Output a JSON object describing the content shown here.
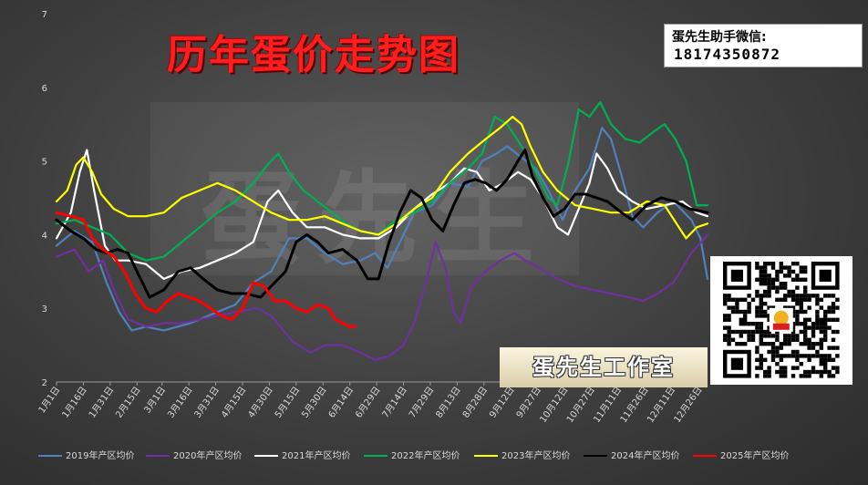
{
  "title": "历年蛋价走势图",
  "wechat_label": "蛋先生助手微信:",
  "wechat_number": "18174350872",
  "studio_label": "蛋先生工作室",
  "watermark": "蛋先生",
  "qr_icon": "qr-code-icon",
  "chart_data": {
    "type": "line",
    "ylim": [
      2,
      7
    ],
    "yticks": [
      2,
      3,
      4,
      5,
      6,
      7
    ],
    "xlim": [
      0,
      364
    ],
    "grid": false,
    "legend": "bottom",
    "x_tick_labels": [
      "1月1日",
      "1月16日",
      "1月31日",
      "2月15日",
      "3月1日",
      "3月16日",
      "3月31日",
      "4月15日",
      "4月30日",
      "5月15日",
      "5月30日",
      "6月14日",
      "6月29日",
      "7月14日",
      "7月29日",
      "8月13日",
      "8月28日",
      "9月12日",
      "9月27日",
      "10月12日",
      "10月27日",
      "11月11日",
      "11月26日",
      "12月11日",
      "12月26日"
    ],
    "x_tick_days": [
      0,
      15,
      30,
      45,
      59,
      74,
      89,
      104,
      119,
      134,
      149,
      164,
      179,
      194,
      209,
      224,
      239,
      254,
      269,
      284,
      299,
      314,
      329,
      344,
      359
    ],
    "series": [
      {
        "name": "2019年产区均价",
        "color": "#4f81bd",
        "points": [
          [
            0,
            3.85
          ],
          [
            10,
            4.05
          ],
          [
            20,
            3.9
          ],
          [
            28,
            3.35
          ],
          [
            35,
            2.95
          ],
          [
            42,
            2.7
          ],
          [
            50,
            2.75
          ],
          [
            60,
            2.7
          ],
          [
            75,
            2.8
          ],
          [
            90,
            2.95
          ],
          [
            100,
            3.05
          ],
          [
            110,
            3.35
          ],
          [
            120,
            3.5
          ],
          [
            130,
            3.95
          ],
          [
            140,
            3.95
          ],
          [
            150,
            3.75
          ],
          [
            160,
            3.6
          ],
          [
            170,
            3.65
          ],
          [
            178,
            3.75
          ],
          [
            185,
            3.55
          ],
          [
            193,
            3.95
          ],
          [
            200,
            4.3
          ],
          [
            210,
            4.4
          ],
          [
            220,
            4.7
          ],
          [
            230,
            4.65
          ],
          [
            238,
            5.0
          ],
          [
            246,
            5.1
          ],
          [
            252,
            5.2
          ],
          [
            260,
            5.05
          ],
          [
            268,
            4.9
          ],
          [
            275,
            4.6
          ],
          [
            283,
            4.2
          ],
          [
            290,
            4.6
          ],
          [
            298,
            4.9
          ],
          [
            305,
            5.45
          ],
          [
            310,
            5.3
          ],
          [
            316,
            4.8
          ],
          [
            322,
            4.25
          ],
          [
            328,
            4.1
          ],
          [
            336,
            4.3
          ],
          [
            345,
            4.45
          ],
          [
            355,
            4.2
          ],
          [
            360,
            3.95
          ],
          [
            364,
            3.4
          ]
        ]
      },
      {
        "name": "2020年产区均价",
        "color": "#7030a0",
        "points": [
          [
            0,
            3.7
          ],
          [
            10,
            3.8
          ],
          [
            18,
            3.5
          ],
          [
            26,
            3.65
          ],
          [
            33,
            3.2
          ],
          [
            40,
            2.85
          ],
          [
            50,
            2.75
          ],
          [
            60,
            2.8
          ],
          [
            70,
            2.8
          ],
          [
            80,
            2.85
          ],
          [
            90,
            2.9
          ],
          [
            100,
            2.95
          ],
          [
            112,
            3.0
          ],
          [
            120,
            2.9
          ],
          [
            132,
            2.55
          ],
          [
            142,
            2.4
          ],
          [
            150,
            2.5
          ],
          [
            160,
            2.5
          ],
          [
            170,
            2.4
          ],
          [
            178,
            2.3
          ],
          [
            186,
            2.35
          ],
          [
            194,
            2.5
          ],
          [
            200,
            2.8
          ],
          [
            206,
            3.3
          ],
          [
            212,
            3.9
          ],
          [
            218,
            3.5
          ],
          [
            222,
            2.95
          ],
          [
            226,
            2.8
          ],
          [
            232,
            3.3
          ],
          [
            240,
            3.5
          ],
          [
            248,
            3.65
          ],
          [
            256,
            3.75
          ],
          [
            262,
            3.65
          ],
          [
            270,
            3.55
          ],
          [
            280,
            3.4
          ],
          [
            290,
            3.3
          ],
          [
            300,
            3.25
          ],
          [
            310,
            3.2
          ],
          [
            320,
            3.15
          ],
          [
            328,
            3.1
          ],
          [
            336,
            3.2
          ],
          [
            345,
            3.35
          ],
          [
            355,
            3.75
          ],
          [
            364,
            4.0
          ]
        ]
      },
      {
        "name": "2021年产区均价",
        "color": "#ffffff",
        "points": [
          [
            0,
            3.95
          ],
          [
            8,
            4.3
          ],
          [
            13,
            4.85
          ],
          [
            17,
            5.15
          ],
          [
            21,
            4.6
          ],
          [
            27,
            3.85
          ],
          [
            33,
            3.65
          ],
          [
            40,
            3.65
          ],
          [
            50,
            3.6
          ],
          [
            60,
            3.4
          ],
          [
            70,
            3.5
          ],
          [
            80,
            3.55
          ],
          [
            90,
            3.65
          ],
          [
            100,
            3.75
          ],
          [
            110,
            3.9
          ],
          [
            118,
            4.45
          ],
          [
            124,
            4.6
          ],
          [
            132,
            4.3
          ],
          [
            140,
            4.1
          ],
          [
            150,
            4.1
          ],
          [
            160,
            4.0
          ],
          [
            170,
            3.95
          ],
          [
            180,
            3.95
          ],
          [
            190,
            4.1
          ],
          [
            200,
            4.35
          ],
          [
            210,
            4.55
          ],
          [
            220,
            4.7
          ],
          [
            228,
            4.9
          ],
          [
            235,
            4.85
          ],
          [
            242,
            4.6
          ],
          [
            250,
            4.7
          ],
          [
            258,
            4.85
          ],
          [
            265,
            4.75
          ],
          [
            272,
            4.5
          ],
          [
            280,
            4.1
          ],
          [
            286,
            4.0
          ],
          [
            292,
            4.35
          ],
          [
            298,
            4.7
          ],
          [
            302,
            5.1
          ],
          [
            308,
            4.9
          ],
          [
            314,
            4.6
          ],
          [
            322,
            4.45
          ],
          [
            330,
            4.35
          ],
          [
            340,
            4.4
          ],
          [
            350,
            4.45
          ],
          [
            358,
            4.3
          ],
          [
            364,
            4.25
          ]
        ]
      },
      {
        "name": "2022年产区均价",
        "color": "#00b050",
        "points": [
          [
            0,
            4.15
          ],
          [
            10,
            4.2
          ],
          [
            20,
            4.1
          ],
          [
            30,
            4.0
          ],
          [
            40,
            3.75
          ],
          [
            50,
            3.65
          ],
          [
            60,
            3.7
          ],
          [
            70,
            3.9
          ],
          [
            80,
            4.1
          ],
          [
            90,
            4.3
          ],
          [
            100,
            4.45
          ],
          [
            110,
            4.7
          ],
          [
            118,
            4.95
          ],
          [
            124,
            5.1
          ],
          [
            130,
            4.85
          ],
          [
            138,
            4.6
          ],
          [
            146,
            4.45
          ],
          [
            154,
            4.3
          ],
          [
            162,
            4.15
          ],
          [
            170,
            4.05
          ],
          [
            180,
            4.0
          ],
          [
            190,
            4.2
          ],
          [
            200,
            4.3
          ],
          [
            210,
            4.45
          ],
          [
            220,
            4.7
          ],
          [
            230,
            4.9
          ],
          [
            238,
            5.1
          ],
          [
            245,
            5.6
          ],
          [
            252,
            5.5
          ],
          [
            260,
            5.2
          ],
          [
            268,
            4.85
          ],
          [
            275,
            4.5
          ],
          [
            280,
            4.4
          ],
          [
            286,
            4.95
          ],
          [
            292,
            5.7
          ],
          [
            298,
            5.6
          ],
          [
            304,
            5.8
          ],
          [
            310,
            5.5
          ],
          [
            318,
            5.3
          ],
          [
            326,
            5.25
          ],
          [
            334,
            5.4
          ],
          [
            340,
            5.5
          ],
          [
            346,
            5.3
          ],
          [
            352,
            5.0
          ],
          [
            358,
            4.4
          ],
          [
            364,
            4.4
          ]
        ]
      },
      {
        "name": "2023年产区均价",
        "color": "#ffff00",
        "points": [
          [
            0,
            4.45
          ],
          [
            6,
            4.6
          ],
          [
            11,
            4.95
          ],
          [
            15,
            5.05
          ],
          [
            20,
            4.85
          ],
          [
            25,
            4.55
          ],
          [
            32,
            4.35
          ],
          [
            40,
            4.25
          ],
          [
            50,
            4.25
          ],
          [
            60,
            4.3
          ],
          [
            70,
            4.5
          ],
          [
            80,
            4.6
          ],
          [
            90,
            4.7
          ],
          [
            100,
            4.6
          ],
          [
            110,
            4.45
          ],
          [
            120,
            4.3
          ],
          [
            130,
            4.2
          ],
          [
            140,
            4.2
          ],
          [
            150,
            4.25
          ],
          [
            160,
            4.15
          ],
          [
            170,
            4.05
          ],
          [
            180,
            4.0
          ],
          [
            190,
            4.15
          ],
          [
            200,
            4.35
          ],
          [
            210,
            4.5
          ],
          [
            220,
            4.85
          ],
          [
            230,
            5.1
          ],
          [
            240,
            5.3
          ],
          [
            248,
            5.45
          ],
          [
            255,
            5.6
          ],
          [
            260,
            5.5
          ],
          [
            265,
            5.2
          ],
          [
            272,
            4.85
          ],
          [
            280,
            4.6
          ],
          [
            290,
            4.4
          ],
          [
            300,
            4.35
          ],
          [
            310,
            4.3
          ],
          [
            320,
            4.3
          ],
          [
            330,
            4.45
          ],
          [
            340,
            4.4
          ],
          [
            348,
            4.1
          ],
          [
            352,
            3.95
          ],
          [
            358,
            4.1
          ],
          [
            364,
            4.15
          ]
        ]
      },
      {
        "name": "2024年产区均价",
        "color": "#000000",
        "points": [
          [
            0,
            4.2
          ],
          [
            8,
            4.05
          ],
          [
            15,
            3.95
          ],
          [
            22,
            3.8
          ],
          [
            28,
            3.75
          ],
          [
            34,
            3.8
          ],
          [
            40,
            3.75
          ],
          [
            46,
            3.45
          ],
          [
            52,
            3.15
          ],
          [
            60,
            3.25
          ],
          [
            68,
            3.5
          ],
          [
            75,
            3.55
          ],
          [
            82,
            3.4
          ],
          [
            90,
            3.25
          ],
          [
            98,
            3.2
          ],
          [
            106,
            3.2
          ],
          [
            114,
            3.15
          ],
          [
            120,
            3.3
          ],
          [
            128,
            3.5
          ],
          [
            134,
            3.9
          ],
          [
            140,
            4.0
          ],
          [
            146,
            3.9
          ],
          [
            152,
            3.75
          ],
          [
            160,
            3.8
          ],
          [
            168,
            3.65
          ],
          [
            174,
            3.4
          ],
          [
            180,
            3.4
          ],
          [
            186,
            3.9
          ],
          [
            192,
            4.3
          ],
          [
            198,
            4.6
          ],
          [
            204,
            4.5
          ],
          [
            210,
            4.2
          ],
          [
            216,
            4.05
          ],
          [
            222,
            4.4
          ],
          [
            228,
            4.7
          ],
          [
            234,
            4.75
          ],
          [
            240,
            4.7
          ],
          [
            246,
            4.6
          ],
          [
            252,
            4.75
          ],
          [
            258,
            5.0
          ],
          [
            262,
            5.15
          ],
          [
            266,
            4.8
          ],
          [
            272,
            4.5
          ],
          [
            278,
            4.25
          ],
          [
            284,
            4.35
          ],
          [
            290,
            4.55
          ],
          [
            296,
            4.55
          ],
          [
            302,
            4.5
          ],
          [
            308,
            4.45
          ],
          [
            316,
            4.3
          ],
          [
            322,
            4.2
          ],
          [
            330,
            4.4
          ],
          [
            338,
            4.5
          ],
          [
            346,
            4.45
          ],
          [
            354,
            4.35
          ],
          [
            364,
            4.3
          ]
        ]
      },
      {
        "name": "2025年产区均价",
        "color": "#ff0000",
        "points": [
          [
            0,
            4.3
          ],
          [
            8,
            4.25
          ],
          [
            15,
            4.2
          ],
          [
            20,
            3.95
          ],
          [
            26,
            3.8
          ],
          [
            32,
            3.7
          ],
          [
            38,
            3.5
          ],
          [
            44,
            3.2
          ],
          [
            50,
            3.0
          ],
          [
            56,
            2.95
          ],
          [
            62,
            3.1
          ],
          [
            68,
            3.2
          ],
          [
            74,
            3.15
          ],
          [
            80,
            3.1
          ],
          [
            86,
            3.0
          ],
          [
            92,
            2.9
          ],
          [
            98,
            2.85
          ],
          [
            104,
            3.0
          ],
          [
            110,
            3.35
          ],
          [
            116,
            3.3
          ],
          [
            122,
            3.1
          ],
          [
            128,
            3.1
          ],
          [
            134,
            3.0
          ],
          [
            140,
            2.95
          ],
          [
            146,
            3.05
          ],
          [
            152,
            3.0
          ],
          [
            156,
            2.85
          ],
          [
            160,
            2.8
          ],
          [
            164,
            2.75
          ],
          [
            167,
            2.75
          ]
        ]
      }
    ]
  }
}
